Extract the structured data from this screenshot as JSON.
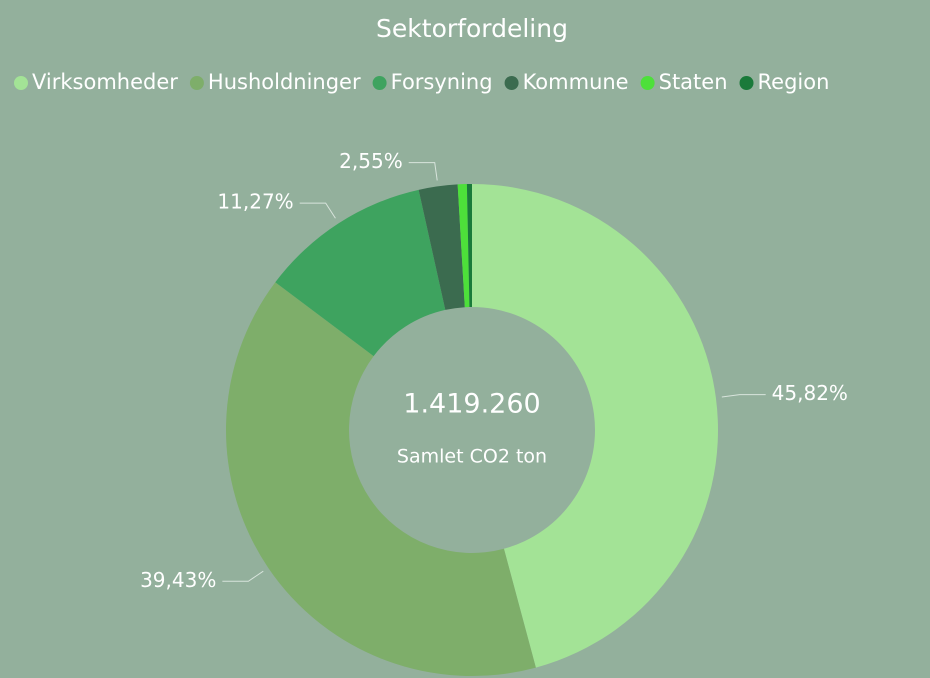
{
  "chart_data": {
    "type": "donut",
    "title": "Sektorfordeling",
    "categories": [
      "Virksomheder",
      "Husholdninger",
      "Forsyning",
      "Kommune",
      "Staten",
      "Region"
    ],
    "values": [
      45.82,
      39.43,
      11.27,
      2.55,
      0.6,
      0.33
    ],
    "value_labels": [
      "45,82%",
      "39,43%",
      "11,27%",
      "2,55%",
      null,
      null
    ],
    "colors": [
      "#a3e396",
      "#7eae6a",
      "#3ea35f",
      "#3b6b4f",
      "#4de03a",
      "#1a7a3a"
    ],
    "total": {
      "value": 1419260,
      "label": "1.419.260"
    },
    "center_caption": "Samlet CO2 ton"
  }
}
